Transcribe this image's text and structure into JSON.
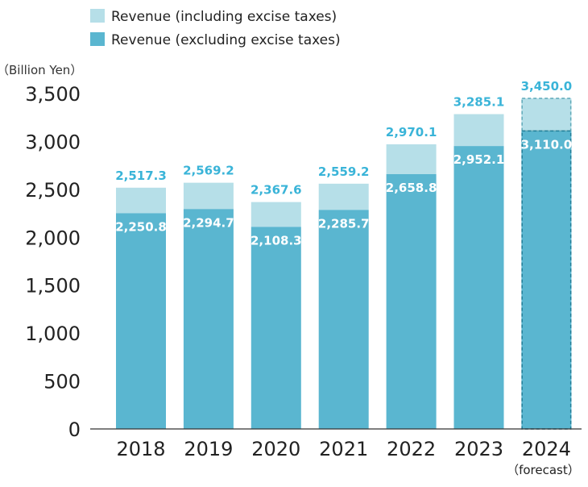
{
  "chart_data": {
    "type": "bar",
    "stacked": "overlay",
    "unit_label": "（Billion Yen）",
    "categories": [
      "2018",
      "2019",
      "2020",
      "2021",
      "2022",
      "2023",
      "2024"
    ],
    "category_notes": {
      "2024": "（forecast）"
    },
    "series": [
      {
        "name": "Revenue (including excise taxes)",
        "color": "#b6dfe8",
        "values": [
          2517.3,
          2569.2,
          2367.6,
          2559.2,
          2970.1,
          3285.1,
          3450.0
        ],
        "labels": [
          "2,517.3",
          "2,569.2",
          "2,367.6",
          "2,559.2",
          "2,970.1",
          "3,285.1",
          "3,450.0"
        ]
      },
      {
        "name": "Revenue (excluding excise taxes)",
        "color": "#5ab6d0",
        "values": [
          2250.8,
          2294.7,
          2108.3,
          2285.7,
          2658.8,
          2952.1,
          3110.0
        ],
        "labels": [
          "2,250.8",
          "2,294.7",
          "2,108.3",
          "2,285.7",
          "2,658.8",
          "2,952.1",
          "3,110.0"
        ]
      }
    ],
    "forecast_category": "2024",
    "ylim": [
      0,
      3500
    ],
    "yticks": [
      0,
      500,
      1000,
      1500,
      2000,
      2500,
      3000,
      3500
    ],
    "ytick_labels": [
      "0",
      "500",
      "1,000",
      "1,500",
      "2,000",
      "2,500",
      "3,000",
      "3,500"
    ],
    "label_color": "#3ab4d8",
    "legend_position": "top-left",
    "grid": false
  }
}
